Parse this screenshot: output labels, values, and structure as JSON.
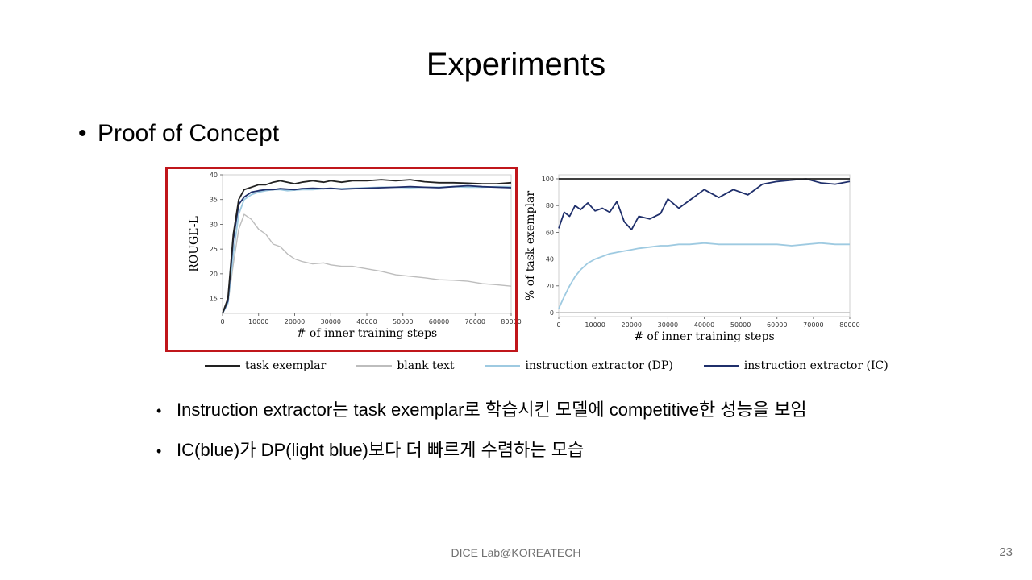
{
  "slide": {
    "title": "Experiments",
    "bullet": "Proof of Concept",
    "sub_bullets": [
      "Instruction extractor는 task exemplar로 학습시킨 모델에 competitive한 성능을 보임",
      "IC(blue)가 DP(light blue)보다 더 빠르게 수렴하는 모습"
    ],
    "footer": "DICE  Lab@KOREATECH",
    "page_number": "23"
  },
  "legend": [
    {
      "label": "task exemplar",
      "color": "#222222"
    },
    {
      "label": "blank text",
      "color": "#bdbdbd"
    },
    {
      "label": "instruction extractor (DP)",
      "color": "#9ecae1"
    },
    {
      "label": "instruction extractor (IC)",
      "color": "#1f2f6b"
    }
  ],
  "chart_data": [
    {
      "type": "line",
      "xlabel": "# of inner training steps",
      "ylabel": "ROUGE-L",
      "xlim": [
        0,
        80000
      ],
      "ylim": [
        12,
        40
      ],
      "xticks": [
        0,
        10000,
        20000,
        30000,
        40000,
        50000,
        60000,
        70000,
        80000
      ],
      "yticks": [
        15,
        20,
        25,
        30,
        35,
        40
      ],
      "highlighted": true,
      "x": [
        0,
        1500,
        3000,
        4500,
        6000,
        8000,
        10000,
        12000,
        14000,
        16000,
        18000,
        20000,
        22000,
        25000,
        28000,
        30000,
        33000,
        36000,
        40000,
        44000,
        48000,
        52000,
        56000,
        60000,
        64000,
        68000,
        72000,
        76000,
        80000
      ],
      "series": [
        {
          "name": "task exemplar",
          "color": "#222222",
          "values": [
            12,
            15,
            28,
            35,
            37,
            37.5,
            38,
            38,
            38.5,
            38.8,
            38.5,
            38.2,
            38.5,
            38.8,
            38.5,
            38.8,
            38.5,
            38.8,
            38.8,
            39,
            38.8,
            39,
            38.6,
            38.4,
            38.4,
            38.3,
            38.2,
            38.2,
            38.4
          ]
        },
        {
          "name": "blank text",
          "color": "#bdbdbd",
          "values": [
            12,
            14,
            22,
            29,
            32,
            31,
            29,
            28,
            26,
            25.5,
            24,
            23,
            22.5,
            22,
            22.2,
            21.8,
            21.5,
            21.5,
            21,
            20.5,
            19.8,
            19.5,
            19.2,
            18.8,
            18.7,
            18.5,
            18,
            17.8,
            17.5
          ]
        },
        {
          "name": "instruction extractor (DP)",
          "color": "#9ecae1",
          "values": [
            12,
            14,
            24,
            32,
            35,
            36,
            36.5,
            36.8,
            37,
            37,
            36.8,
            36.9,
            37,
            37,
            37.2,
            37.2,
            37.2,
            37.3,
            37.4,
            37.5,
            37.5,
            37.4,
            37.5,
            37.5,
            37.6,
            37.5,
            37.5,
            37.6,
            37.6
          ]
        },
        {
          "name": "instruction extractor (IC)",
          "color": "#1f2f6b",
          "values": [
            12,
            14.5,
            27,
            34,
            35.5,
            36.5,
            36.8,
            37,
            37,
            37.2,
            37.1,
            37,
            37.2,
            37.3,
            37.2,
            37.3,
            37.1,
            37.2,
            37.3,
            37.4,
            37.5,
            37.6,
            37.5,
            37.4,
            37.6,
            37.8,
            37.6,
            37.5,
            37.4
          ]
        }
      ]
    },
    {
      "type": "line",
      "xlabel": "# of inner training steps",
      "ylabel": "% of task exemplar",
      "xlim": [
        0,
        80000
      ],
      "ylim": [
        -3,
        103
      ],
      "xticks": [
        0,
        10000,
        20000,
        30000,
        40000,
        50000,
        60000,
        70000,
        80000
      ],
      "yticks": [
        0,
        20,
        40,
        60,
        80,
        100
      ],
      "highlighted": false,
      "x": [
        0,
        1500,
        3000,
        4500,
        6000,
        8000,
        10000,
        12000,
        14000,
        16000,
        18000,
        20000,
        22000,
        25000,
        28000,
        30000,
        33000,
        36000,
        40000,
        44000,
        48000,
        52000,
        56000,
        60000,
        64000,
        68000,
        72000,
        76000,
        80000
      ],
      "series": [
        {
          "name": "task exemplar",
          "color": "#222222",
          "values": [
            100,
            100,
            100,
            100,
            100,
            100,
            100,
            100,
            100,
            100,
            100,
            100,
            100,
            100,
            100,
            100,
            100,
            100,
            100,
            100,
            100,
            100,
            100,
            100,
            100,
            100,
            100,
            100,
            100
          ]
        },
        {
          "name": "blank text",
          "color": "#bdbdbd",
          "values": [
            0,
            0,
            0,
            0,
            0,
            0,
            0,
            0,
            0,
            0,
            0,
            0,
            0,
            0,
            0,
            0,
            0,
            0,
            0,
            0,
            0,
            0,
            0,
            0,
            0,
            0,
            0,
            0,
            0
          ]
        },
        {
          "name": "instruction extractor (DP)",
          "color": "#9ecae1",
          "values": [
            3,
            12,
            20,
            27,
            32,
            37,
            40,
            42,
            44,
            45,
            46,
            47,
            48,
            49,
            50,
            50,
            51,
            51,
            52,
            51,
            51,
            51,
            51,
            51,
            50,
            51,
            52,
            51,
            51
          ]
        },
        {
          "name": "instruction extractor (IC)",
          "color": "#1f2f6b",
          "values": [
            63,
            75,
            72,
            80,
            77,
            82,
            76,
            78,
            75,
            83,
            68,
            62,
            72,
            70,
            74,
            85,
            78,
            84,
            92,
            86,
            92,
            88,
            96,
            98,
            99,
            100,
            97,
            96,
            98
          ]
        }
      ]
    }
  ]
}
